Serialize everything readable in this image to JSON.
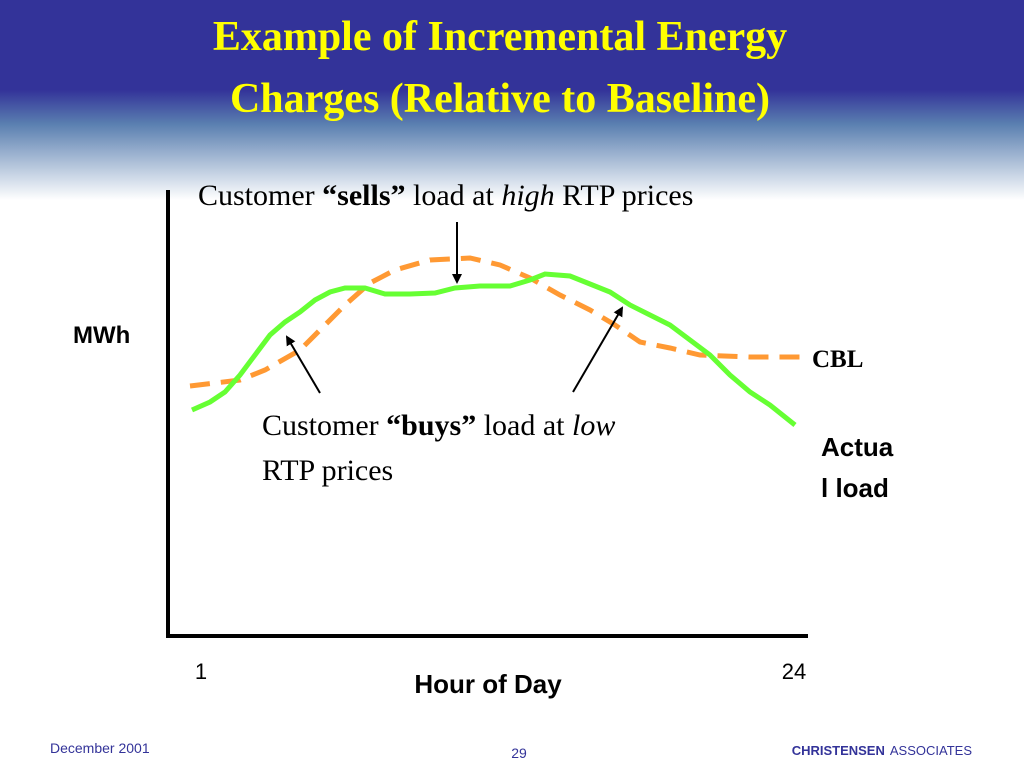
{
  "title": [
    "Example of Incremental Energy",
    "Charges (Relative to Baseline)"
  ],
  "sells_note": [
    "Customer ",
    "“sells”",
    " load at ",
    "high",
    " RTP prices"
  ],
  "buys_note": [
    "Customer ",
    "“buys”",
    " load at ",
    "low",
    "RTP prices"
  ],
  "y_label": "MWh",
  "x_label": "Hour of Day",
  "x_ticks": [
    "1",
    "24"
  ],
  "cbl_label": "CBL",
  "actual_label": [
    "Actua",
    "l load"
  ],
  "footer": {
    "date": "December 2001",
    "page": "29",
    "company": [
      "CHRISTENSEN",
      "ASSOCIATES"
    ]
  }
}
